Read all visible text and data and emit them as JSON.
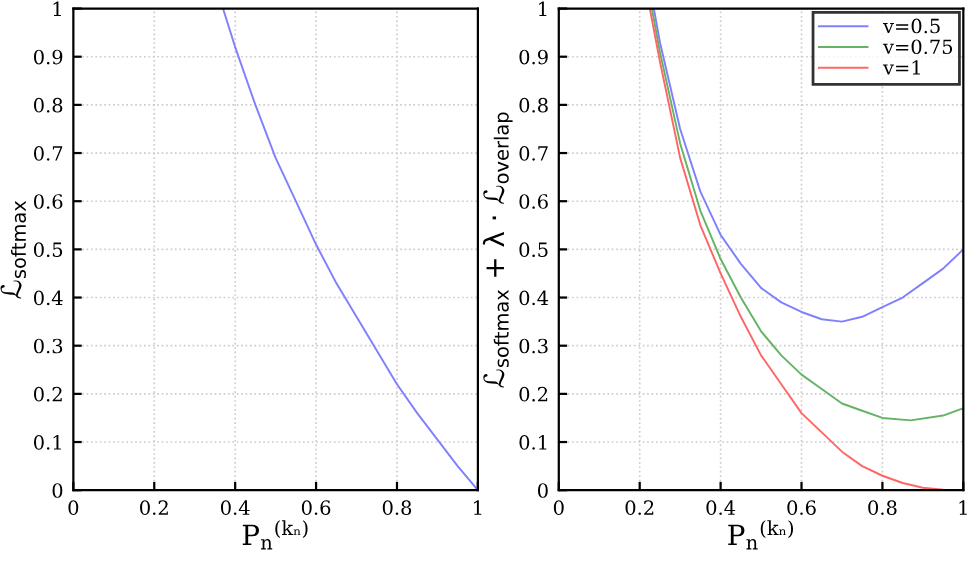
{
  "chart_data": [
    {
      "type": "line",
      "xlabel": "P$_{n}$$^{(kₙ)}$",
      "ylabel": "ℒ$_{softmax}$",
      "xlim": [
        0,
        1
      ],
      "ylim": [
        0,
        1
      ],
      "xticks": [
        0,
        0.2,
        0.4,
        0.6,
        0.8,
        1
      ],
      "yticks": [
        0,
        0.1,
        0.2,
        0.3,
        0.4,
        0.5,
        0.6,
        0.7,
        0.8,
        0.9,
        1
      ],
      "grid": true,
      "legend": false,
      "series": [
        {
          "color": "#8080ff",
          "x": [
            0.37,
            0.4,
            0.45,
            0.5,
            0.55,
            0.6,
            0.65,
            0.7,
            0.75,
            0.8,
            0.85,
            0.9,
            0.95,
            1.0
          ],
          "values": [
            1.0,
            0.92,
            0.8,
            0.69,
            0.6,
            0.51,
            0.43,
            0.36,
            0.29,
            0.22,
            0.16,
            0.105,
            0.05,
            0.0
          ]
        }
      ]
    },
    {
      "type": "line",
      "xlabel": "P$_{n}$$^{(kₙ)}$",
      "ylabel": "ℒ$_{softmax}$ + λ · ℒ$_{overlap}$",
      "xlim": [
        0,
        1
      ],
      "ylim": [
        0,
        1
      ],
      "xticks": [
        0,
        0.2,
        0.4,
        0.6,
        0.8,
        1
      ],
      "yticks": [
        0,
        0.1,
        0.2,
        0.3,
        0.4,
        0.5,
        0.6,
        0.7,
        0.8,
        0.9,
        1
      ],
      "grid": true,
      "legend": "top right",
      "series": [
        {
          "name": "v=0.5",
          "color": "#8080ff",
          "x": [
            0.235,
            0.25,
            0.3,
            0.35,
            0.4,
            0.45,
            0.5,
            0.55,
            0.6,
            0.65,
            0.7,
            0.75,
            0.8,
            0.85,
            0.9,
            0.95,
            1.0
          ],
          "values": [
            1.0,
            0.93,
            0.75,
            0.62,
            0.53,
            0.47,
            0.42,
            0.39,
            0.37,
            0.355,
            0.35,
            0.36,
            0.38,
            0.4,
            0.43,
            0.46,
            0.5
          ]
        },
        {
          "name": "v=0.75",
          "color": "#66b366",
          "x": [
            0.23,
            0.25,
            0.3,
            0.35,
            0.4,
            0.45,
            0.5,
            0.55,
            0.6,
            0.65,
            0.7,
            0.75,
            0.8,
            0.87,
            0.95,
            1.0
          ],
          "values": [
            1.0,
            0.91,
            0.72,
            0.58,
            0.48,
            0.4,
            0.33,
            0.28,
            0.24,
            0.21,
            0.18,
            0.165,
            0.15,
            0.145,
            0.155,
            0.17
          ]
        },
        {
          "name": "v=1",
          "color": "#ff6666",
          "x": [
            0.225,
            0.25,
            0.3,
            0.35,
            0.4,
            0.45,
            0.5,
            0.55,
            0.6,
            0.65,
            0.7,
            0.75,
            0.8,
            0.85,
            0.9,
            0.95,
            1.0
          ],
          "values": [
            1.0,
            0.89,
            0.69,
            0.55,
            0.45,
            0.36,
            0.28,
            0.22,
            0.16,
            0.12,
            0.08,
            0.05,
            0.03,
            0.015,
            0.005,
            0.001,
            0.0
          ]
        }
      ]
    }
  ]
}
